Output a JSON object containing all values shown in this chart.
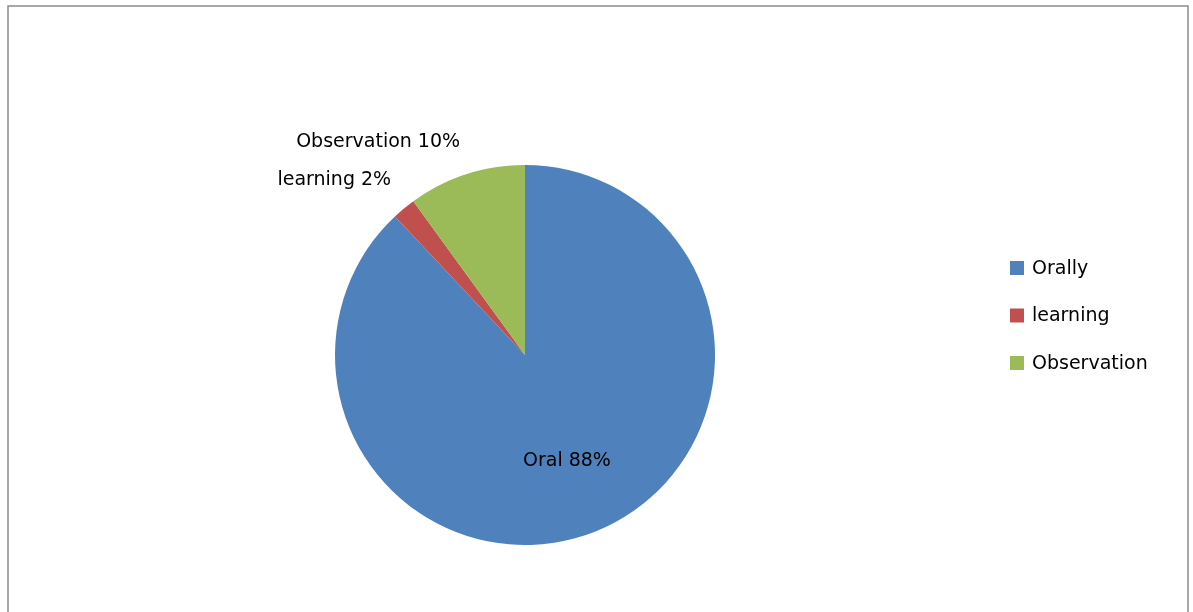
{
  "chart_data": {
    "type": "pie",
    "categories": [
      "Orally",
      "learning",
      "Observation"
    ],
    "values": [
      88,
      2,
      10
    ],
    "colors": [
      "#4f81bd",
      "#c0504d",
      "#9bbb59"
    ],
    "value_labels": [
      "Oral  88%",
      "learning  2%",
      "Observation  10%"
    ],
    "legend": "right"
  }
}
